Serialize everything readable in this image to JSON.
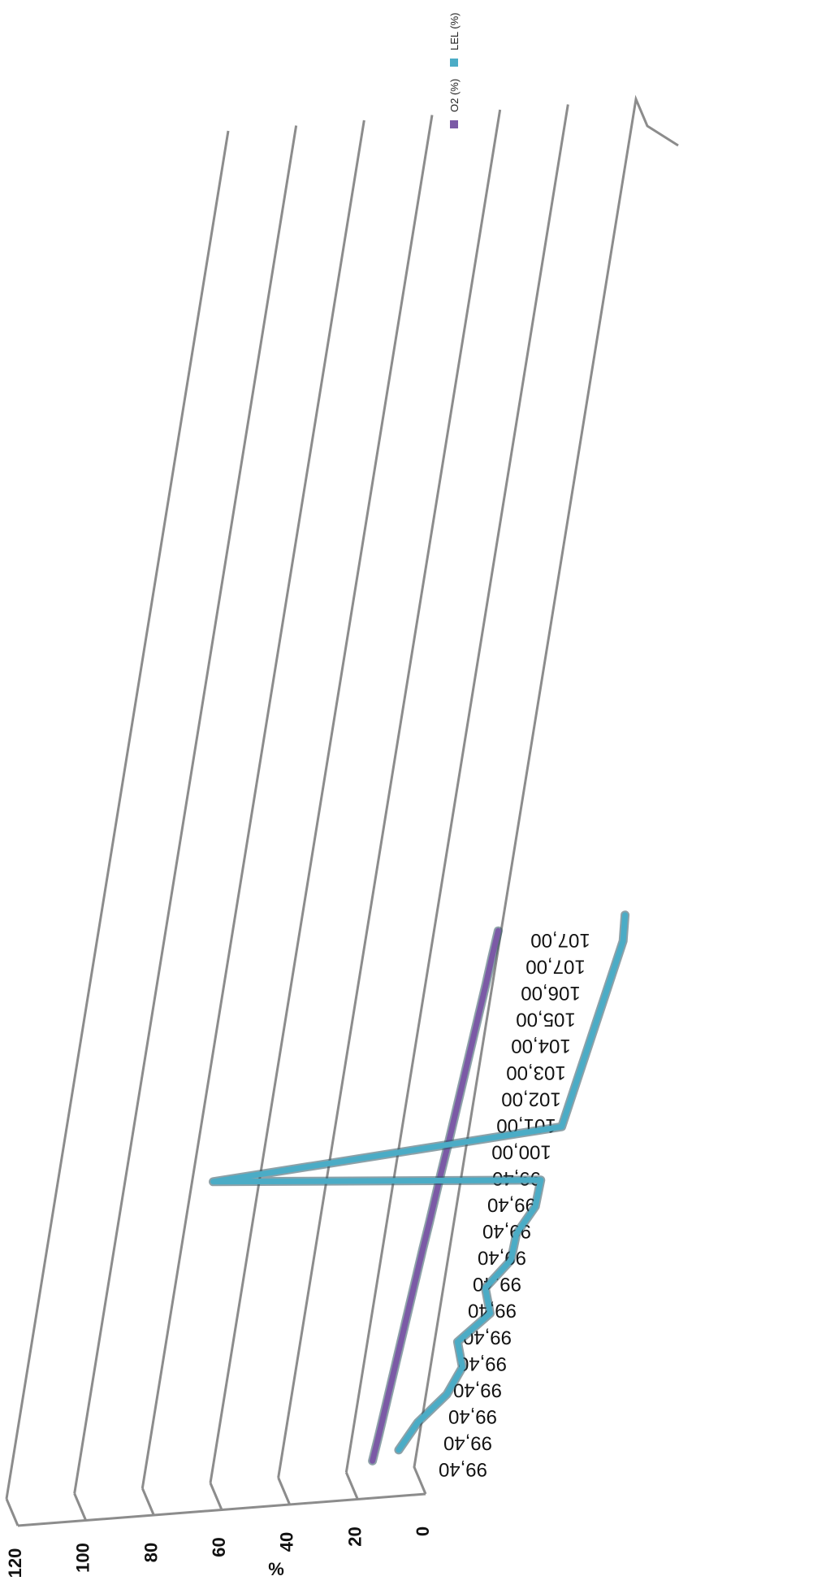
{
  "chart_data": {
    "type": "line",
    "title": "",
    "ylabel": "%",
    "xlabel": "",
    "ylim": [
      0,
      120
    ],
    "y_ticks": [
      "0",
      "20",
      "40",
      "60",
      "80",
      "100",
      "120"
    ],
    "categories": [
      "99,40",
      "99,40",
      "99,40",
      "99,40",
      "99,40",
      "99,40",
      "99,40",
      "99,40",
      "99,40",
      "99,40",
      "99,40",
      "99,40",
      "100,00",
      "101,00",
      "102,00",
      "103,00",
      "104,00",
      "105,00",
      "106,00",
      "107,00",
      "107,00"
    ],
    "series": [
      {
        "name": "O2 (%)",
        "color": "#7b5aa6",
        "values": [
          20.9,
          20.8,
          20.8,
          20.8,
          20.8,
          20.8,
          20.8,
          20.8,
          20.8,
          20.7,
          20.7,
          20.7,
          20.6,
          20.6,
          20.6,
          20.6,
          20.6,
          20.6,
          20.6,
          20.7,
          20.7
        ]
      },
      {
        "name": "LEL (%)",
        "color": "#4bacc6",
        "values": [
          17,
          14,
          8,
          6,
          10,
          3,
          7,
          2,
          3,
          0,
          1,
          100,
          0,
          0,
          0,
          0,
          0,
          0,
          0,
          0,
          2
        ]
      }
    ],
    "grid": true,
    "legend_position": "top"
  }
}
